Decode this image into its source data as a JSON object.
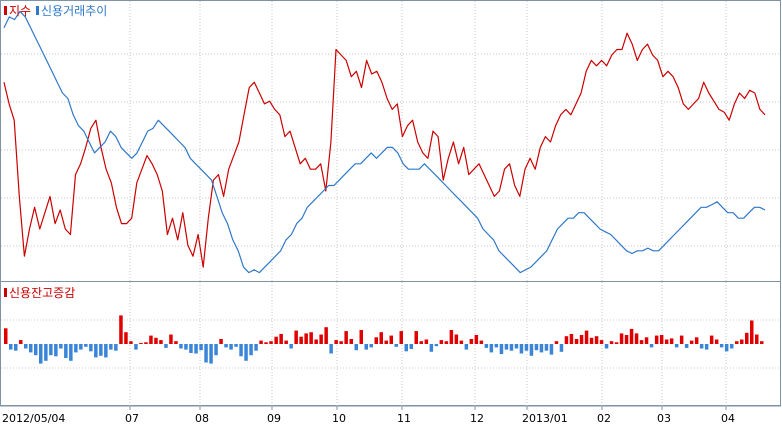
{
  "colors": {
    "index": "#cc0000",
    "credit": "#2f78c8",
    "bar_up": "#e00000",
    "bar_down": "#3a85d8",
    "grid": "#c8c8c8",
    "frame": "#7f93a8"
  },
  "legend_top": [
    {
      "label": "지수",
      "color": "#cc0000"
    },
    {
      "label": "신용거래추이",
      "color": "#2f78c8"
    }
  ],
  "legend_bottom": {
    "label": "신용잔고증감",
    "color": "#cc0000"
  },
  "chart_data": [
    {
      "type": "line",
      "legend_placement": "top-left",
      "grid": true,
      "x_ticks": [
        "2012/05/04",
        "07",
        "08",
        "09",
        "10",
        "11",
        "12",
        "2013/01",
        "02",
        "03",
        "04"
      ],
      "x_range": [
        0,
        150
      ],
      "y_range": [
        0,
        100
      ],
      "series": [
        {
          "name": "지수",
          "color": "#cc0000",
          "values": [
            72,
            64,
            58,
            30,
            8,
            18,
            26,
            18,
            24,
            30,
            20,
            25,
            18,
            16,
            38,
            42,
            48,
            55,
            58,
            48,
            40,
            35,
            26,
            20,
            20,
            22,
            35,
            40,
            45,
            42,
            38,
            32,
            16,
            22,
            14,
            24,
            12,
            8,
            16,
            4,
            22,
            36,
            38,
            30,
            40,
            45,
            50,
            60,
            70,
            72,
            68,
            64,
            65,
            62,
            60,
            52,
            54,
            48,
            42,
            44,
            40,
            40,
            42,
            32,
            50,
            84,
            82,
            80,
            74,
            76,
            70,
            80,
            75,
            76,
            72,
            66,
            62,
            64,
            52,
            56,
            58,
            50,
            46,
            44,
            54,
            52,
            36,
            44,
            50,
            42,
            48,
            38,
            40,
            42,
            38,
            34,
            30,
            32,
            40,
            42,
            34,
            30,
            40,
            44,
            40,
            48,
            52,
            50,
            56,
            60,
            62,
            60,
            64,
            68,
            76,
            80,
            78,
            80,
            78,
            82,
            84,
            84,
            90,
            86,
            80,
            84,
            86,
            82,
            80,
            74,
            76,
            74,
            70,
            64,
            62,
            64,
            66,
            72,
            68,
            65,
            62,
            61,
            58,
            64,
            68,
            66,
            69,
            68,
            62,
            60
          ]
        },
        {
          "name": "신용거래추이",
          "color": "#2f78c8",
          "values": [
            92,
            96,
            95,
            98,
            96,
            92,
            88,
            84,
            80,
            76,
            72,
            68,
            66,
            60,
            56,
            54,
            50,
            46,
            48,
            50,
            54,
            52,
            48,
            46,
            44,
            46,
            50,
            54,
            55,
            58,
            56,
            54,
            52,
            50,
            48,
            44,
            42,
            40,
            38,
            36,
            30,
            24,
            20,
            14,
            10,
            4,
            2,
            3,
            2,
            4,
            6,
            8,
            10,
            14,
            16,
            20,
            22,
            26,
            28,
            30,
            32,
            34,
            34,
            36,
            38,
            40,
            42,
            42,
            44,
            46,
            44,
            46,
            48,
            48,
            46,
            42,
            40,
            40,
            40,
            42,
            40,
            38,
            36,
            34,
            32,
            30,
            28,
            26,
            24,
            22,
            18,
            16,
            14,
            10,
            8,
            6,
            4,
            2,
            3,
            4,
            6,
            8,
            10,
            14,
            18,
            20,
            22,
            22,
            24,
            24,
            22,
            20,
            18,
            17,
            16,
            14,
            12,
            10,
            9,
            10,
            10,
            11,
            10,
            10,
            12,
            14,
            16,
            18,
            20,
            22,
            24,
            26,
            26,
            27,
            28,
            26,
            24,
            24,
            22,
            22,
            24,
            26,
            26,
            25
          ]
        }
      ]
    },
    {
      "type": "bar",
      "legend_placement": "top-left",
      "grid": true,
      "y_range": [
        -10,
        10
      ],
      "values": [
        2.8,
        -1,
        -1.2,
        0.7,
        -0.8,
        -1.5,
        -2,
        -3.5,
        -3,
        -2,
        -2.2,
        -0.8,
        -2.5,
        -3,
        -1.5,
        -1,
        -0.5,
        -1.3,
        -2.4,
        -2.1,
        -2.4,
        -1,
        -1.2,
        5.1,
        2.1,
        0.5,
        -1,
        0.2,
        0.3,
        1.5,
        1.1,
        0.7,
        -0.7,
        1.7,
        0.5,
        -0.8,
        -1,
        -1.6,
        -1.7,
        -1.1,
        -3.3,
        -3.5,
        -2,
        0.9,
        -0.6,
        -1,
        -0.5,
        -2.2,
        -3,
        -2,
        -1.2,
        0.6,
        0.3,
        0.5,
        1.3,
        1.8,
        0.6,
        -0.8,
        2.4,
        1.3,
        1.9,
        2.1,
        0.8,
        1.7,
        3,
        -1.7,
        0.7,
        0.5,
        2.3,
        0.9,
        -1.1,
        2.5,
        -1,
        -0.6,
        1.2,
        2.1,
        0.6,
        1.5,
        -0.5,
        2.3,
        -1.3,
        -0.9,
        2.3,
        0.5,
        0.8,
        -1.4,
        -0.4,
        0.7,
        0.5,
        2.5,
        1.7,
        0.6,
        -1,
        0.9,
        1.6,
        0.6,
        -0.7,
        -1.5,
        -0.6,
        -1.8,
        -1,
        -1.2,
        -0.8,
        -1.7,
        -1.2,
        -2.1,
        -1.1,
        -1.5,
        -1.2,
        -1.9,
        0.5,
        -1.4,
        1.4,
        1.8,
        0.9,
        1.6,
        2.4,
        1.1,
        1.4,
        0.7,
        -0.8,
        0.5,
        0.3,
        1.9,
        1.6,
        2.7,
        1.9,
        0.7,
        1.2,
        -0.6,
        1.5,
        1.6,
        0.8,
        1,
        -0.6,
        1.5,
        -0.7,
        0.6,
        1.2,
        -0.8,
        -1,
        1.5,
        0.8,
        -0.6,
        -1.3,
        -0.8,
        0.5,
        0.8,
        2,
        4.2,
        1.7,
        0.5
      ]
    }
  ]
}
